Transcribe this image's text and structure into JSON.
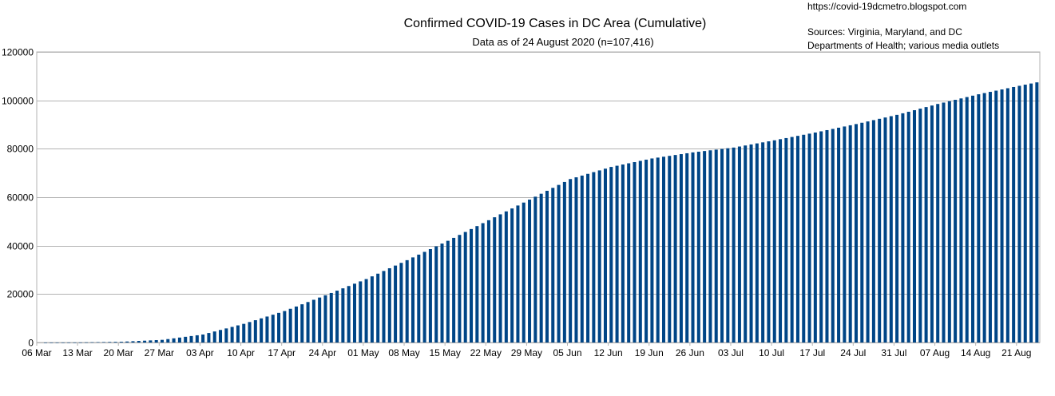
{
  "header": {
    "source_url": "https://covid-19dcmetro.blogspot.com",
    "sources_line1": "Sources: Virginia, Maryland, and DC",
    "sources_line2": "Departments of Health; various media outlets"
  },
  "chart_data": {
    "type": "bar",
    "title": "Confirmed COVID-19 Cases in DC Area (Cumulative)",
    "subtitle": "Data as of 24 August 2020 (n=107,416)",
    "xlabel": "",
    "ylabel": "",
    "ylim": [
      0,
      120000
    ],
    "y_ticks": [
      0,
      20000,
      40000,
      60000,
      80000,
      100000,
      120000
    ],
    "x_tick_labels": [
      "06 Mar",
      "13 Mar",
      "20 Mar",
      "27 Mar",
      "03 Apr",
      "10 Apr",
      "17 Apr",
      "24 Apr",
      "01 May",
      "08 May",
      "15 May",
      "22 May",
      "29 May",
      "05 Jun",
      "12 Jun",
      "19 Jun",
      "26 Jun",
      "03 Jul",
      "10 Jul",
      "17 Jul",
      "24 Jul",
      "31 Jul",
      "07 Aug",
      "14 Aug",
      "21 Aug"
    ],
    "grid": true,
    "legend": "none",
    "bar_color": "#004586",
    "x_start": "2020-03-06",
    "x_end": "2020-08-24",
    "anchors": [
      [
        "2020-03-06",
        0
      ],
      [
        "2020-03-13",
        40
      ],
      [
        "2020-03-20",
        300
      ],
      [
        "2020-03-27",
        1100
      ],
      [
        "2020-04-03",
        3300
      ],
      [
        "2020-04-10",
        7700
      ],
      [
        "2020-04-17",
        13000
      ],
      [
        "2020-04-24",
        19500
      ],
      [
        "2020-05-01",
        26200
      ],
      [
        "2020-05-08",
        34000
      ],
      [
        "2020-05-15",
        42000
      ],
      [
        "2020-05-22",
        50500
      ],
      [
        "2020-05-29",
        59000
      ],
      [
        "2020-06-05",
        67500
      ],
      [
        "2020-06-12",
        72500
      ],
      [
        "2020-06-19",
        76000
      ],
      [
        "2020-06-26",
        78500
      ],
      [
        "2020-07-03",
        80500
      ],
      [
        "2020-07-10",
        83500
      ],
      [
        "2020-07-17",
        86700
      ],
      [
        "2020-07-24",
        90200
      ],
      [
        "2020-07-31",
        94000
      ],
      [
        "2020-08-07",
        98500
      ],
      [
        "2020-08-14",
        102500
      ],
      [
        "2020-08-21",
        106000
      ],
      [
        "2020-08-24",
        107416
      ]
    ]
  }
}
